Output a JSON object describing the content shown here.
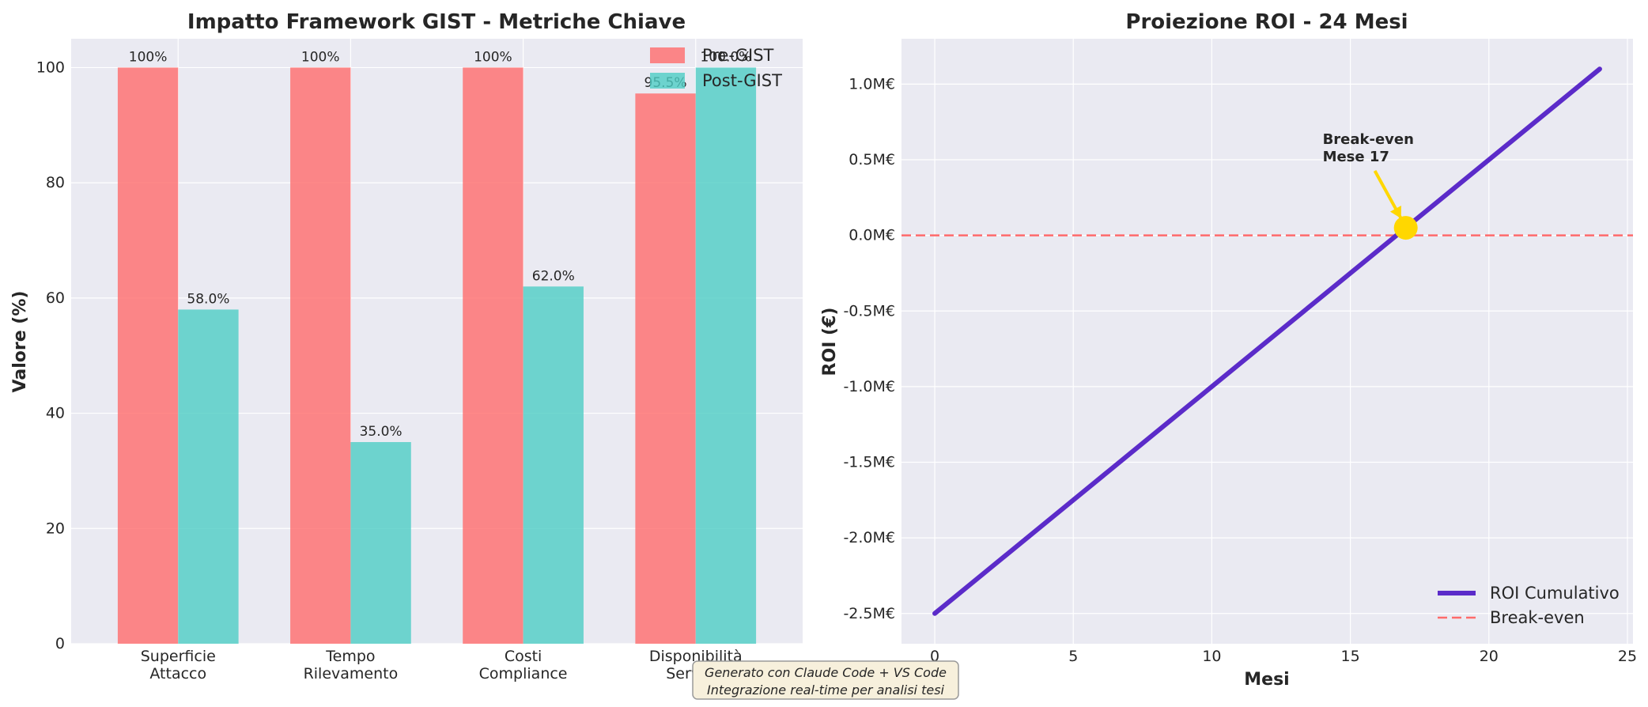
{
  "chart_data": [
    {
      "type": "bar",
      "title": "Impatto Framework GIST - Metriche Chiave",
      "xlabel": "",
      "ylabel": "Valore (%)",
      "ylim": [
        0,
        105
      ],
      "yticks": [
        0,
        20,
        40,
        60,
        80,
        100
      ],
      "categories": [
        [
          "Superficie",
          "Attacco"
        ],
        [
          "Tempo",
          "Rilevamento"
        ],
        [
          "Costi",
          "Compliance"
        ],
        [
          "Disponibilità",
          "Servizio"
        ]
      ],
      "series": [
        {
          "name": "Pre-GIST",
          "color": "#ff6b6b",
          "values": [
            100,
            100,
            100,
            95.5
          ],
          "labels": [
            "100%",
            "100%",
            "100%",
            "95.5%"
          ]
        },
        {
          "name": "Post-GIST",
          "color": "#4ecdc4",
          "values": [
            58,
            35,
            62,
            100
          ],
          "labels": [
            "58.0%",
            "35.0%",
            "62.0%",
            "100.0%"
          ]
        }
      ],
      "legend": "top-right",
      "grid": true
    },
    {
      "type": "line",
      "title": "Proiezione ROI - 24 Mesi",
      "xlabel": "Mesi",
      "ylabel": "ROI (€)",
      "xlim": [
        -1.2,
        25.2
      ],
      "ylim": [
        -2.7,
        1.3
      ],
      "xticks": [
        0,
        5,
        10,
        15,
        20,
        25
      ],
      "yticks": [
        1.0,
        0.5,
        0.0,
        -0.5,
        -1.0,
        -1.5,
        -2.0,
        -2.5
      ],
      "ytick_labels": [
        "1.0M€",
        "0.5M€",
        "0.0M€",
        "-0.5M€",
        "-1.0M€",
        "-1.5M€",
        "-2.0M€",
        "-2.5M€"
      ],
      "series": [
        {
          "name": "ROI Cumulativo",
          "color": "#5b2bc9",
          "x": [
            0,
            24
          ],
          "y": [
            -2.5,
            1.1
          ]
        }
      ],
      "reference_line": {
        "name": "Break-even",
        "y": 0,
        "color": "#ff6b6b",
        "style": "dashed"
      },
      "marker": {
        "x": 17,
        "y": 0.05,
        "color": "#ffd700"
      },
      "annotation": {
        "lines": [
          "Break-even",
          "Mese 17"
        ],
        "text_x": 14,
        "text_y": 0.5,
        "arrow_color": "#ffd700"
      },
      "legend": "bottom-right",
      "grid": true
    }
  ],
  "footnote": {
    "line1": "Generato con Claude Code + VS Code",
    "line2": "Integrazione real-time per analisi tesi"
  }
}
